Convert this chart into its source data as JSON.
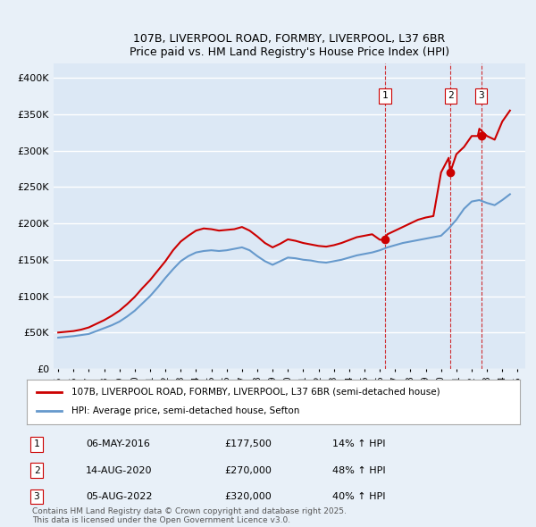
{
  "title": "107B, LIVERPOOL ROAD, FORMBY, LIVERPOOL, L37 6BR",
  "subtitle": "Price paid vs. HM Land Registry's House Price Index (HPI)",
  "ylabel_ticks": [
    "£0",
    "£50K",
    "£100K",
    "£150K",
    "£200K",
    "£250K",
    "£300K",
    "£350K",
    "£400K"
  ],
  "ytick_vals": [
    0,
    50000,
    100000,
    150000,
    200000,
    250000,
    300000,
    350000,
    400000
  ],
  "ylim": [
    0,
    420000
  ],
  "xlim_start": 1995.0,
  "xlim_end": 2025.5,
  "background_color": "#e8f0f8",
  "plot_bg_color": "#dce8f5",
  "grid_color": "#ffffff",
  "red_line_color": "#cc0000",
  "blue_line_color": "#6699cc",
  "sale_marker_color": "#cc0000",
  "vline_color": "#cc0000",
  "hpi_line": {
    "years": [
      1995,
      1995.5,
      1996,
      1996.5,
      1997,
      1997.5,
      1998,
      1998.5,
      1999,
      1999.5,
      2000,
      2000.5,
      2001,
      2001.5,
      2002,
      2002.5,
      2003,
      2003.5,
      2004,
      2004.5,
      2005,
      2005.5,
      2006,
      2006.5,
      2007,
      2007.5,
      2008,
      2008.5,
      2009,
      2009.5,
      2010,
      2010.5,
      2011,
      2011.5,
      2012,
      2012.5,
      2013,
      2013.5,
      2014,
      2014.5,
      2015,
      2015.5,
      2016,
      2016.5,
      2017,
      2017.5,
      2018,
      2018.5,
      2019,
      2019.5,
      2020,
      2020.5,
      2021,
      2021.5,
      2022,
      2022.5,
      2023,
      2023.5,
      2024,
      2024.5
    ],
    "values": [
      43000,
      44000,
      45000,
      46500,
      48000,
      52000,
      56000,
      60000,
      65000,
      72000,
      80000,
      90000,
      100000,
      112000,
      125000,
      137000,
      148000,
      155000,
      160000,
      162000,
      163000,
      162000,
      163000,
      165000,
      167000,
      163000,
      155000,
      148000,
      143000,
      148000,
      153000,
      152000,
      150000,
      149000,
      147000,
      146000,
      148000,
      150000,
      153000,
      156000,
      158000,
      160000,
      163000,
      167000,
      170000,
      173000,
      175000,
      177000,
      179000,
      181000,
      183000,
      193000,
      205000,
      220000,
      230000,
      232000,
      228000,
      225000,
      232000,
      240000
    ]
  },
  "price_paid_line": {
    "years": [
      1995,
      1995.5,
      1996,
      1996.5,
      1997,
      1997.5,
      1998,
      1998.5,
      1999,
      1999.5,
      2000,
      2000.5,
      2001,
      2001.5,
      2002,
      2002.5,
      2003,
      2003.5,
      2004,
      2004.5,
      2005,
      2005.5,
      2006,
      2006.5,
      2007,
      2007.5,
      2008,
      2008.5,
      2009,
      2009.5,
      2010,
      2010.5,
      2011,
      2011.5,
      2012,
      2012.5,
      2013,
      2013.5,
      2014,
      2014.5,
      2015,
      2015.5,
      2016,
      2016.25,
      2016.5,
      2017,
      2017.5,
      2018,
      2018.5,
      2019,
      2019.5,
      2020,
      2020.5,
      2020.6,
      2021,
      2021.5,
      2022,
      2022.4,
      2022.5,
      2023,
      2023.5,
      2024,
      2024.5
    ],
    "values": [
      50000,
      51000,
      52000,
      54000,
      57000,
      62000,
      67000,
      73000,
      80000,
      89000,
      99000,
      111000,
      122000,
      135000,
      148000,
      163000,
      175000,
      183000,
      190000,
      193000,
      192000,
      190000,
      191000,
      192000,
      195000,
      190000,
      182000,
      173000,
      167000,
      172000,
      178000,
      176000,
      173000,
      171000,
      169000,
      168000,
      170000,
      173000,
      177000,
      181000,
      183000,
      185000,
      177500,
      177500,
      185000,
      190000,
      195000,
      200000,
      205000,
      208000,
      210000,
      270000,
      290000,
      270000,
      295000,
      305000,
      320000,
      320000,
      330000,
      320000,
      315000,
      340000,
      355000
    ]
  },
  "sales": [
    {
      "num": 1,
      "year": 2016.35,
      "price": 177500,
      "date": "06-MAY-2016",
      "pct": "14%",
      "dir": "↑"
    },
    {
      "num": 2,
      "year": 2020.62,
      "price": 270000,
      "date": "14-AUG-2020",
      "pct": "48%",
      "dir": "↑"
    },
    {
      "num": 3,
      "year": 2022.62,
      "price": 320000,
      "date": "05-AUG-2022",
      "pct": "40%",
      "dir": "↑"
    }
  ],
  "legend_line1": "107B, LIVERPOOL ROAD, FORMBY, LIVERPOOL, L37 6BR (semi-detached house)",
  "legend_line2": "HPI: Average price, semi-detached house, Sefton",
  "footer": "Contains HM Land Registry data © Crown copyright and database right 2025.\nThis data is licensed under the Open Government Licence v3.0.",
  "x_tick_years": [
    1995,
    1996,
    1997,
    1998,
    1999,
    2000,
    2001,
    2002,
    2003,
    2004,
    2005,
    2006,
    2007,
    2008,
    2009,
    2010,
    2011,
    2012,
    2013,
    2014,
    2015,
    2016,
    2017,
    2018,
    2019,
    2020,
    2021,
    2022,
    2023,
    2024,
    2025
  ]
}
